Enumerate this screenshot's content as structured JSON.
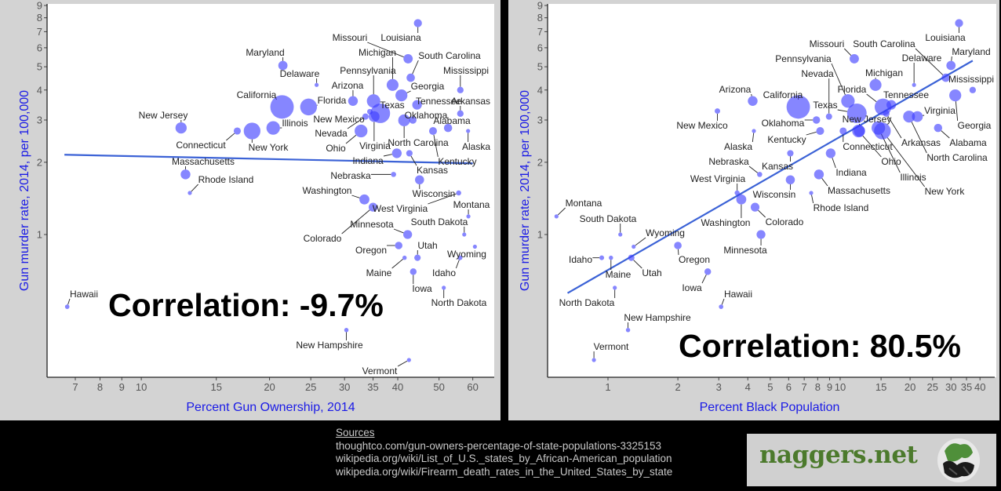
{
  "chart_data": [
    {
      "type": "scatter",
      "title": "",
      "xlabel": "Percent Gun Ownership, 2014",
      "ylabel": "Gun murder rate, 2014, per 100,000",
      "xscale": "log",
      "yscale": "log",
      "xlim": [
        6.2,
        66
      ],
      "ylim": [
        0.256,
        9.5
      ],
      "xticks": [
        7,
        8,
        9,
        10,
        15,
        20,
        25,
        30,
        35,
        40,
        50,
        60
      ],
      "yticks": [
        1,
        2,
        3,
        4,
        5,
        6,
        7,
        8,
        9
      ],
      "annotation": "Correlation: -9.7%",
      "trend": {
        "x": [
          6.6,
          60
        ],
        "y": [
          2.15,
          1.98
        ]
      },
      "size_variable": "state population (millions)",
      "points": [
        {
          "label": "Louisiana",
          "x": 44.6,
          "y": 7.6,
          "size": 4.6
        },
        {
          "label": "Missouri",
          "x": 42.3,
          "y": 5.4,
          "size": 6.1
        },
        {
          "label": "South Carolina",
          "x": 42.9,
          "y": 4.5,
          "size": 4.9
        },
        {
          "label": "Maryland",
          "x": 21.5,
          "y": 5.06,
          "size": 6.0
        },
        {
          "label": "Delaware",
          "x": 25.8,
          "y": 4.2,
          "size": 0.9
        },
        {
          "label": "Michigan",
          "x": 38.9,
          "y": 4.2,
          "size": 9.9
        },
        {
          "label": "Mississippi",
          "x": 56.1,
          "y": 4.0,
          "size": 3.0
        },
        {
          "label": "Georgia",
          "x": 40.8,
          "y": 3.8,
          "size": 10.1
        },
        {
          "label": "Arizona",
          "x": 31.4,
          "y": 3.6,
          "size": 6.7
        },
        {
          "label": "Pennsylvania",
          "x": 35.1,
          "y": 3.6,
          "size": 12.8
        },
        {
          "label": "Tennessee",
          "x": 44.4,
          "y": 3.47,
          "size": 6.5
        },
        {
          "label": "Arkansas",
          "x": 56.1,
          "y": 3.19,
          "size": 3.0
        },
        {
          "label": "California",
          "x": 21.4,
          "y": 3.4,
          "size": 38.8
        },
        {
          "label": "Florida",
          "x": 24.7,
          "y": 3.4,
          "size": 19.9
        },
        {
          "label": "Texas",
          "x": 36.4,
          "y": 3.2,
          "size": 27.0
        },
        {
          "label": "Virginia",
          "x": 35.2,
          "y": 3.1,
          "size": 8.3
        },
        {
          "label": "New Mexico",
          "x": 34.4,
          "y": 3.25,
          "size": 2.1
        },
        {
          "label": "Oklahoma",
          "x": 43.4,
          "y": 3.0,
          "size": 3.9
        },
        {
          "label": "North Carolina",
          "x": 41.4,
          "y": 2.99,
          "size": 9.9
        },
        {
          "label": "Alabama",
          "x": 52.5,
          "y": 2.78,
          "size": 4.8
        },
        {
          "label": "Kentucky",
          "x": 48.4,
          "y": 2.7,
          "size": 4.4
        },
        {
          "label": "Alaska",
          "x": 58.5,
          "y": 2.7,
          "size": 0.7
        },
        {
          "label": "New Jersey",
          "x": 12.4,
          "y": 2.78,
          "size": 8.9
        },
        {
          "label": "Connecticut",
          "x": 16.8,
          "y": 2.7,
          "size": 3.6
        },
        {
          "label": "New York",
          "x": 18.2,
          "y": 2.7,
          "size": 19.7
        },
        {
          "label": "Illinois",
          "x": 20.4,
          "y": 2.78,
          "size": 12.9
        },
        {
          "label": "Nevada",
          "x": 33.6,
          "y": 3.1,
          "size": 2.8
        },
        {
          "label": "Ohio",
          "x": 32.8,
          "y": 2.7,
          "size": 11.6
        },
        {
          "label": "Indiana",
          "x": 39.8,
          "y": 2.18,
          "size": 6.6
        },
        {
          "label": "Kansas",
          "x": 42.6,
          "y": 2.18,
          "size": 2.9
        },
        {
          "label": "Massachusetts",
          "x": 12.7,
          "y": 1.78,
          "size": 6.7
        },
        {
          "label": "Rhode Island",
          "x": 13.0,
          "y": 1.49,
          "size": 1.0
        },
        {
          "label": "Nebraska",
          "x": 39.1,
          "y": 1.78,
          "size": 1.9
        },
        {
          "label": "Wisconsin",
          "x": 45.0,
          "y": 1.69,
          "size": 5.8
        },
        {
          "label": "Washington",
          "x": 33.4,
          "y": 1.4,
          "size": 7.1
        },
        {
          "label": "West Virginia",
          "x": 55.6,
          "y": 1.49,
          "size": 1.8
        },
        {
          "label": "Colorado",
          "x": 35.0,
          "y": 1.3,
          "size": 5.4
        },
        {
          "label": "Montana",
          "x": 58.6,
          "y": 1.19,
          "size": 1.0
        },
        {
          "label": "Minnesota",
          "x": 42.2,
          "y": 1.0,
          "size": 5.5
        },
        {
          "label": "South Dakota",
          "x": 57.3,
          "y": 1.0,
          "size": 0.85
        },
        {
          "label": "Oregon",
          "x": 40.2,
          "y": 0.9,
          "size": 4.0
        },
        {
          "label": "Wyoming",
          "x": 60.7,
          "y": 0.89,
          "size": 0.58
        },
        {
          "label": "Utah",
          "x": 44.5,
          "y": 0.8,
          "size": 2.9
        },
        {
          "label": "Idaho",
          "x": 56.0,
          "y": 0.8,
          "size": 1.6
        },
        {
          "label": "Maine",
          "x": 41.5,
          "y": 0.8,
          "size": 1.3
        },
        {
          "label": "Iowa",
          "x": 43.5,
          "y": 0.7,
          "size": 3.1
        },
        {
          "label": "North Dakota",
          "x": 51.3,
          "y": 0.6,
          "size": 0.74
        },
        {
          "label": "Hawaii",
          "x": 6.7,
          "y": 0.5,
          "size": 1.4
        },
        {
          "label": "New Hampshire",
          "x": 30.3,
          "y": 0.4,
          "size": 1.3
        },
        {
          "label": "Vermont",
          "x": 42.5,
          "y": 0.3,
          "size": 0.63
        }
      ]
    },
    {
      "type": "scatter",
      "title": "",
      "xlabel": "Percent Black Population",
      "ylabel": "Gun murder rate, 2014, per 100,000",
      "xscale": "log",
      "yscale": "log",
      "xlim": [
        0.6,
        47
      ],
      "ylim": [
        0.256,
        9.5
      ],
      "xticks": [
        1,
        2,
        3,
        4,
        5,
        6,
        7,
        8,
        9,
        10,
        15,
        20,
        25,
        30,
        35,
        40
      ],
      "xticklabels": [
        "1",
        "2",
        "3",
        "4",
        "5",
        "6",
        "7",
        "8",
        "9",
        "10",
        "15",
        "20",
        "25",
        "30",
        "35",
        "40"
      ],
      "yticks": [
        1,
        2,
        3,
        4,
        5,
        6,
        7,
        8,
        9
      ],
      "annotation": "Correlation: 80.5%",
      "trend": {
        "x": [
          0.67,
          37.2
        ],
        "y": [
          0.57,
          5.3
        ]
      },
      "size_variable": "state population (millions)",
      "points": [
        {
          "label": "Louisiana",
          "x": 32.5,
          "y": 7.6,
          "size": 4.6
        },
        {
          "label": "Missouri",
          "x": 11.5,
          "y": 5.4,
          "size": 6.1
        },
        {
          "label": "South Carolina",
          "x": 28.5,
          "y": 4.5,
          "size": 4.9
        },
        {
          "label": "Maryland",
          "x": 30.0,
          "y": 5.06,
          "size": 6.0
        },
        {
          "label": "Delaware",
          "x": 20.8,
          "y": 4.2,
          "size": 0.9
        },
        {
          "label": "Michigan",
          "x": 14.2,
          "y": 4.2,
          "size": 9.9
        },
        {
          "label": "Mississippi",
          "x": 37.2,
          "y": 4.0,
          "size": 3.0
        },
        {
          "label": "Georgia",
          "x": 31.3,
          "y": 3.8,
          "size": 10.1
        },
        {
          "label": "Arizona",
          "x": 4.2,
          "y": 3.6,
          "size": 6.7
        },
        {
          "label": "Pennsylvania",
          "x": 10.8,
          "y": 3.6,
          "size": 12.8
        },
        {
          "label": "Tennessee",
          "x": 16.6,
          "y": 3.47,
          "size": 6.5
        },
        {
          "label": "Arkansas",
          "x": 15.8,
          "y": 3.19,
          "size": 3.0
        },
        {
          "label": "California",
          "x": 6.6,
          "y": 3.4,
          "size": 38.8
        },
        {
          "label": "Florida",
          "x": 15.3,
          "y": 3.4,
          "size": 19.9
        },
        {
          "label": "Texas",
          "x": 11.8,
          "y": 3.2,
          "size": 27.0
        },
        {
          "label": "Virginia",
          "x": 21.5,
          "y": 3.1,
          "size": 8.3
        },
        {
          "label": "New Mexico",
          "x": 2.96,
          "y": 3.27,
          "size": 2.1
        },
        {
          "label": "Oklahoma",
          "x": 7.9,
          "y": 3.0,
          "size": 3.9
        },
        {
          "label": "North Carolina",
          "x": 19.8,
          "y": 3.1,
          "size": 9.9
        },
        {
          "label": "Alabama",
          "x": 26.4,
          "y": 2.78,
          "size": 4.8
        },
        {
          "label": "Kentucky",
          "x": 8.2,
          "y": 2.7,
          "size": 4.4
        },
        {
          "label": "Alaska",
          "x": 4.25,
          "y": 2.7,
          "size": 0.7
        },
        {
          "label": "New Jersey",
          "x": 12.1,
          "y": 2.7,
          "size": 8.9
        },
        {
          "label": "Connecticut",
          "x": 10.3,
          "y": 2.7,
          "size": 3.6
        },
        {
          "label": "New York",
          "x": 15.2,
          "y": 2.7,
          "size": 19.7
        },
        {
          "label": "Illinois",
          "x": 14.6,
          "y": 2.78,
          "size": 12.9
        },
        {
          "label": "Nevada",
          "x": 8.95,
          "y": 3.1,
          "size": 2.8
        },
        {
          "label": "Ohio",
          "x": 12.0,
          "y": 2.7,
          "size": 11.6
        },
        {
          "label": "Indiana",
          "x": 9.1,
          "y": 2.18,
          "size": 6.6
        },
        {
          "label": "Kansas",
          "x": 6.1,
          "y": 2.18,
          "size": 2.9
        },
        {
          "label": "Massachusetts",
          "x": 8.1,
          "y": 1.78,
          "size": 6.7
        },
        {
          "label": "Rhode Island",
          "x": 7.5,
          "y": 1.49,
          "size": 1.0
        },
        {
          "label": "Nebraska",
          "x": 4.5,
          "y": 1.78,
          "size": 1.9
        },
        {
          "label": "Wisconsin",
          "x": 6.1,
          "y": 1.69,
          "size": 5.8
        },
        {
          "label": "Washington",
          "x": 3.75,
          "y": 1.4,
          "size": 7.1
        },
        {
          "label": "West Virginia",
          "x": 3.6,
          "y": 1.49,
          "size": 1.8
        },
        {
          "label": "Colorado",
          "x": 4.3,
          "y": 1.3,
          "size": 5.4
        },
        {
          "label": "Montana",
          "x": 0.6,
          "y": 1.19,
          "size": 1.0
        },
        {
          "label": "Minnesota",
          "x": 4.56,
          "y": 1.0,
          "size": 5.5
        },
        {
          "label": "South Dakota",
          "x": 1.13,
          "y": 1.0,
          "size": 0.85
        },
        {
          "label": "Oregon",
          "x": 2.0,
          "y": 0.9,
          "size": 4.0
        },
        {
          "label": "Wyoming",
          "x": 1.29,
          "y": 0.89,
          "size": 0.58
        },
        {
          "label": "Utah",
          "x": 1.26,
          "y": 0.8,
          "size": 2.9
        },
        {
          "label": "Idaho",
          "x": 0.94,
          "y": 0.8,
          "size": 1.6
        },
        {
          "label": "Maine",
          "x": 1.03,
          "y": 0.8,
          "size": 1.3
        },
        {
          "label": "Iowa",
          "x": 2.69,
          "y": 0.7,
          "size": 3.1
        },
        {
          "label": "North Dakota",
          "x": 1.07,
          "y": 0.6,
          "size": 0.74
        },
        {
          "label": "Hawaii",
          "x": 3.07,
          "y": 0.5,
          "size": 1.4
        },
        {
          "label": "New Hampshire",
          "x": 1.22,
          "y": 0.4,
          "size": 1.3
        },
        {
          "label": "Vermont",
          "x": 0.87,
          "y": 0.3,
          "size": 0.63
        }
      ]
    }
  ],
  "sources": {
    "heading": "Sources",
    "lines": [
      "thoughtco.com/gun-owners-percentage-of-state-populations-3325153",
      "wikipedia.org/wiki/List_of_U.S._states_by_African-American_population",
      "wikipedia.org/wiki/Firearm_death_rates_in_the_United_States_by_state"
    ]
  },
  "logo": {
    "text": "naggers.net",
    "icon": "frog-emblem-icon"
  },
  "colors": {
    "point": "#3c3cff",
    "trend": "#3b62d6",
    "axis_title": "#1a1ae6",
    "logo_text": "#4c7a2c"
  }
}
